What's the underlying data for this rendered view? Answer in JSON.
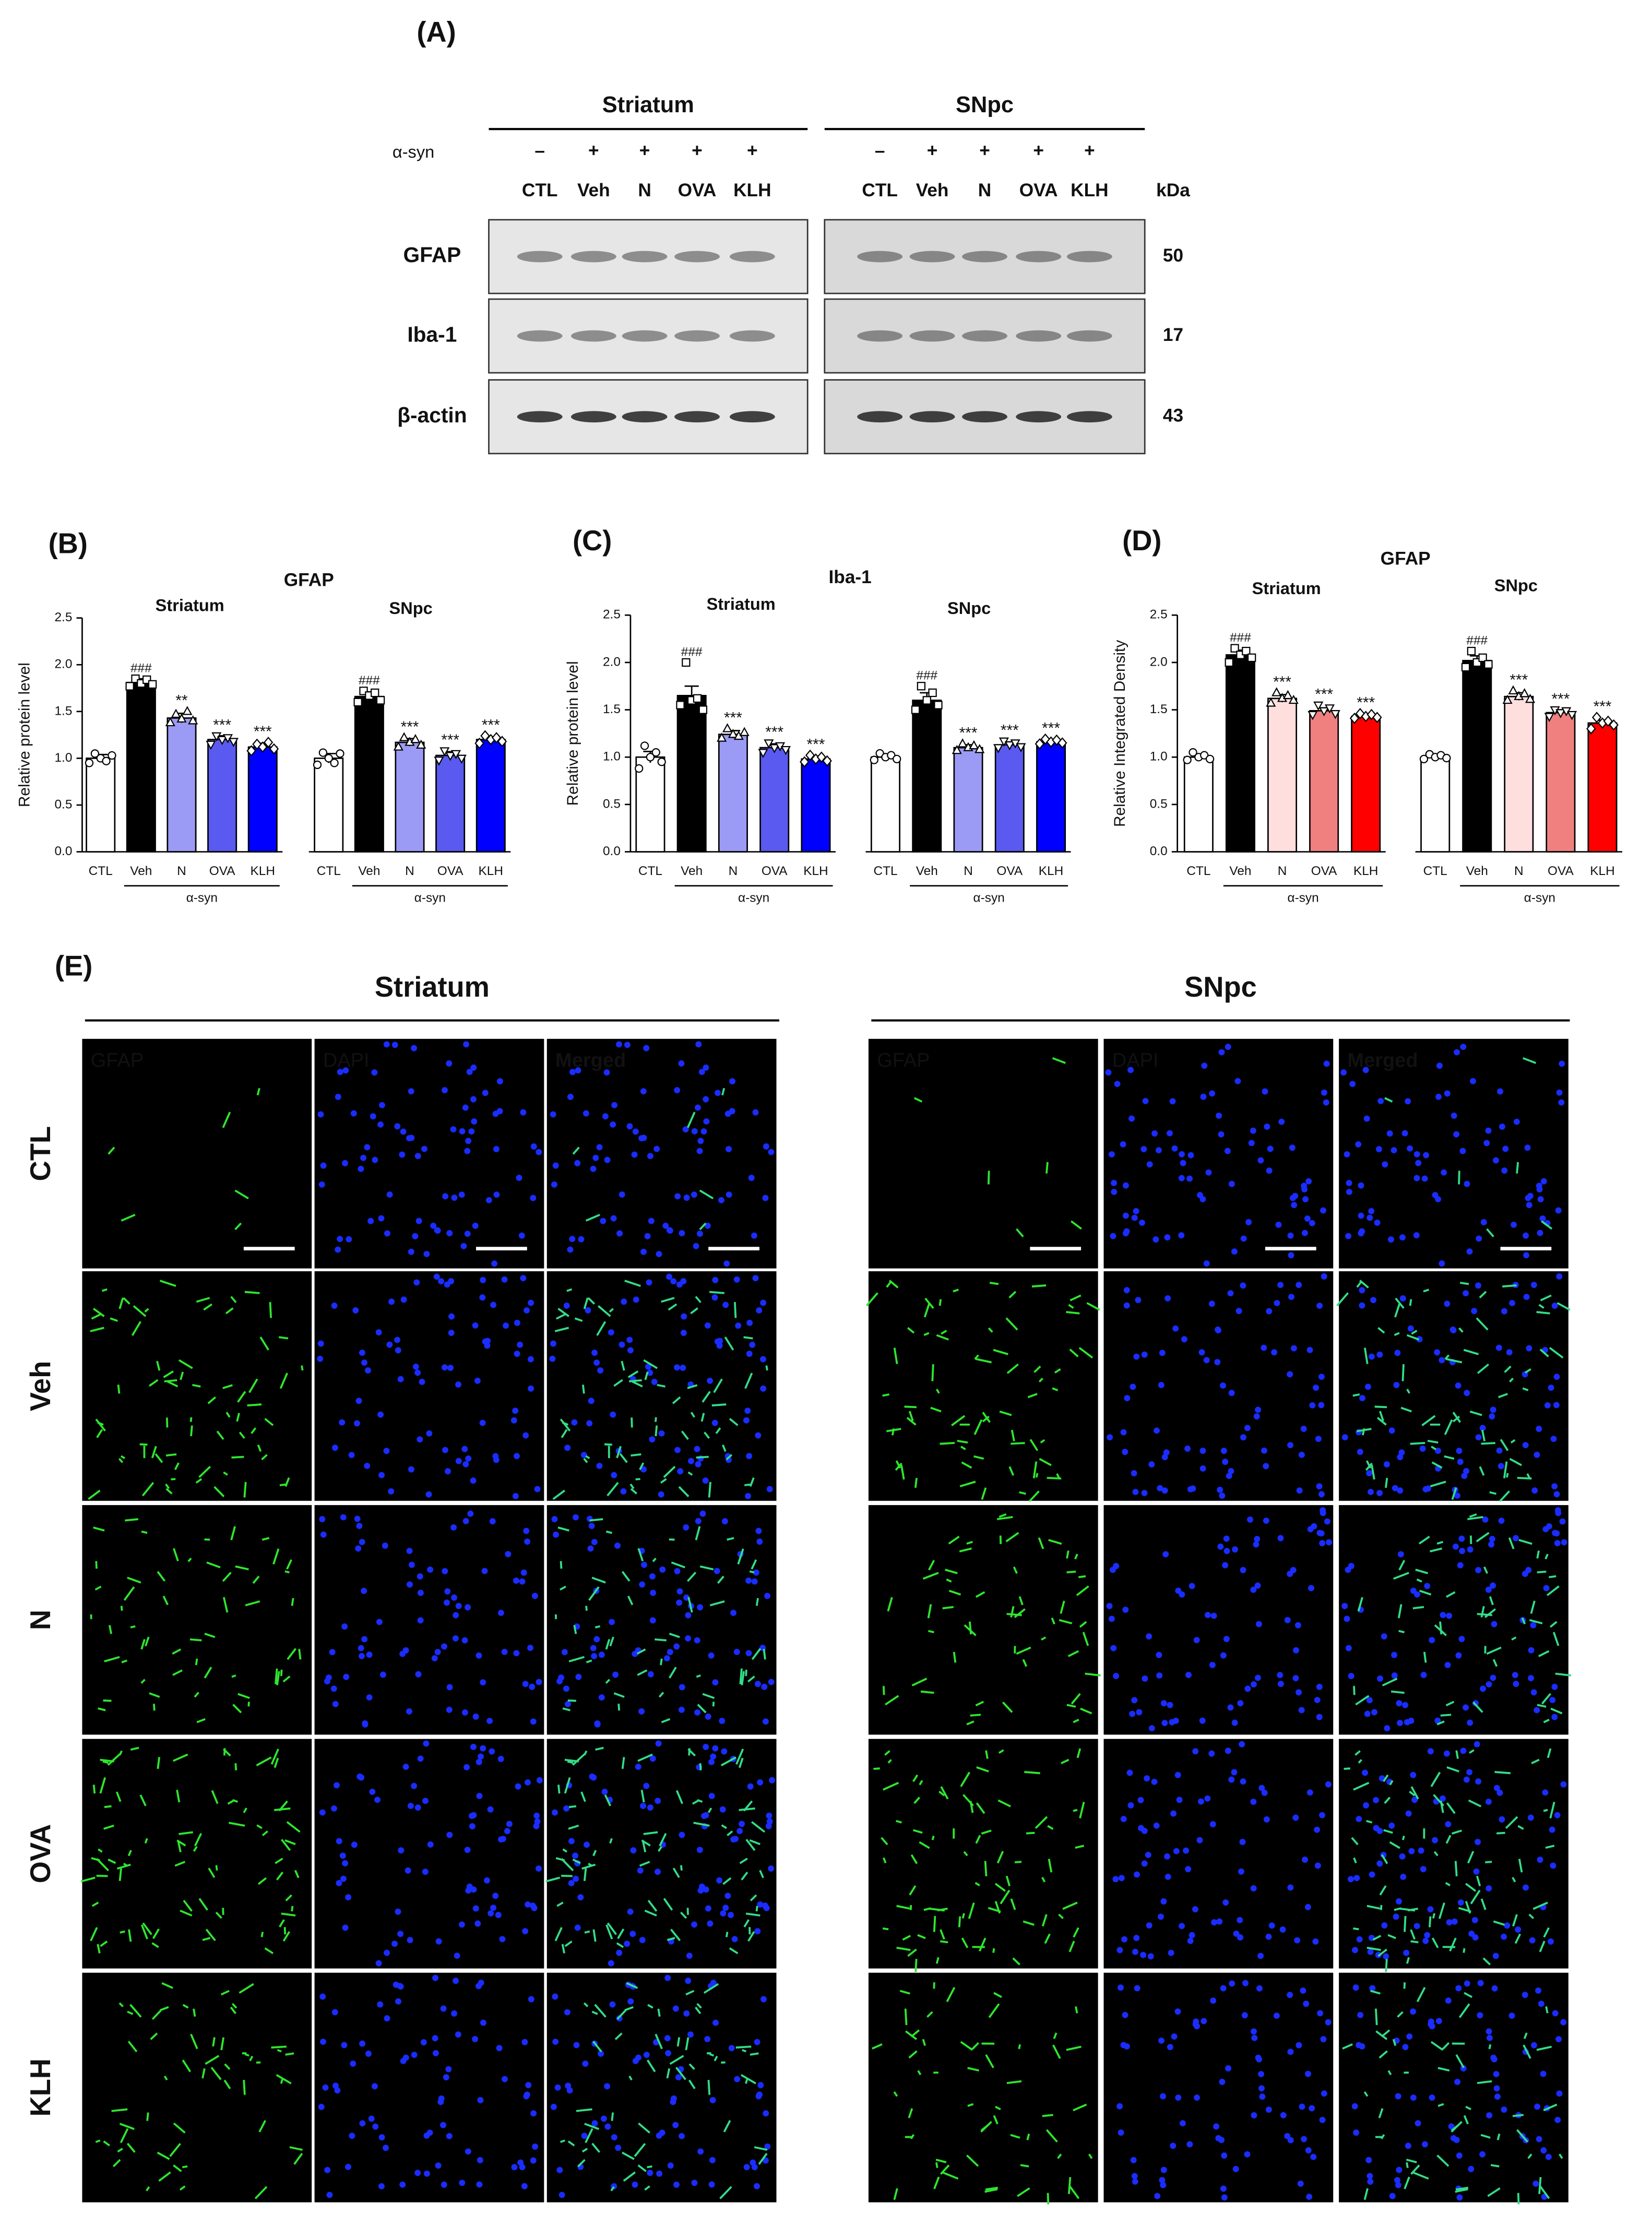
{
  "blot": {
    "label": "(A)",
    "treatment_label": "α-syn",
    "kda_label": "kDa",
    "regions": [
      {
        "name": "Striatum",
        "signs": [
          "–",
          "+",
          "+",
          "+",
          "+"
        ],
        "lanes": [
          "CTL",
          "Veh",
          "N",
          "OVA",
          "KLH"
        ]
      },
      {
        "name": "SNpc",
        "signs": [
          "–",
          "+",
          "+",
          "+",
          "+"
        ],
        "lanes": [
          "CTL",
          "Veh",
          "N",
          "OVA",
          "KLH"
        ]
      }
    ],
    "proteins": [
      {
        "name": "GFAP",
        "kda": 50
      },
      {
        "name": "Iba-1",
        "kda": 17
      },
      {
        "name": "β-actin",
        "kda": 43
      }
    ]
  },
  "chart_data": [
    {
      "type": "bar",
      "label": "(B)",
      "title": "GFAP",
      "ylabel": "Relative protein level",
      "ylim": [
        0,
        2.5
      ],
      "yticks": [
        {
          "value": 0,
          "label": "0.0"
        },
        0.5,
        {
          "value": 1,
          "label": "1.0"
        },
        1.5,
        {
          "value": 2,
          "label": "2.0"
        },
        2.5
      ],
      "groups": [
        {
          "name": "Striatum",
          "categories": [
            "CTL",
            "Veh",
            "N",
            "OVA",
            "KLH"
          ],
          "group_label": "α-syn",
          "colors": [
            "#ffffff",
            "#000000",
            "#9b9bf5",
            "#5a5af0",
            "#0000ff"
          ],
          "values": [
            1.0,
            1.81,
            1.43,
            1.2,
            1.12
          ],
          "errors": [
            0.04,
            0.04,
            0.05,
            0.04,
            0.04
          ],
          "annotations": [
            null,
            "###",
            "**",
            "***",
            "***"
          ],
          "points": [
            [
              0.95,
              1.05,
              1.0,
              0.97,
              1.03
            ],
            [
              1.77,
              1.85,
              1.8,
              1.84,
              1.79
            ],
            [
              1.38,
              1.47,
              1.42,
              1.5,
              1.4
            ],
            [
              1.15,
              1.24,
              1.2,
              1.22,
              1.18
            ],
            [
              1.08,
              1.15,
              1.12,
              1.17,
              1.1
            ]
          ]
        },
        {
          "name": "SNpc",
          "categories": [
            "CTL",
            "Veh",
            "N",
            "OVA",
            "KLH"
          ],
          "group_label": "α-syn",
          "colors": [
            "#ffffff",
            "#000000",
            "#9b9bf5",
            "#5a5af0",
            "#0000ff"
          ],
          "values": [
            1.0,
            1.66,
            1.17,
            1.03,
            1.2
          ],
          "errors": [
            0.05,
            0.05,
            0.04,
            0.04,
            0.03
          ],
          "annotations": [
            null,
            "###",
            "***",
            "***",
            "***"
          ],
          "points": [
            [
              0.93,
              1.06,
              1.0,
              0.95,
              1.05
            ],
            [
              1.6,
              1.72,
              1.67,
              1.7,
              1.62
            ],
            [
              1.12,
              1.22,
              1.17,
              1.2,
              1.14
            ],
            [
              0.98,
              1.08,
              1.03,
              1.05,
              1.0
            ],
            [
              1.16,
              1.24,
              1.2,
              1.22,
              1.18
            ]
          ]
        }
      ]
    },
    {
      "type": "bar",
      "label": "(C)",
      "title": "Iba-1",
      "ylabel": "Relative protein level",
      "ylim": [
        0,
        2.5
      ],
      "yticks": [
        {
          "value": 0,
          "label": "0.0"
        },
        0.5,
        {
          "value": 1,
          "label": "1.0"
        },
        1.5,
        {
          "value": 2,
          "label": "2.0"
        },
        2.5
      ],
      "groups": [
        {
          "name": "Striatum",
          "categories": [
            "CTL",
            "Veh",
            "N",
            "OVA",
            "KLH"
          ],
          "group_label": "α-syn",
          "colors": [
            "#ffffff",
            "#000000",
            "#9b9bf5",
            "#5a5af0",
            "#0000ff"
          ],
          "values": [
            1.0,
            1.65,
            1.24,
            1.1,
            0.98
          ],
          "errors": [
            0.06,
            0.1,
            0.04,
            0.04,
            0.03
          ],
          "annotations": [
            null,
            "###",
            "***",
            "***",
            "***"
          ],
          "points": [
            [
              0.88,
              1.12,
              1.0,
              1.05,
              0.95
            ],
            [
              1.55,
              2.0,
              1.6,
              1.62,
              1.5
            ],
            [
              1.2,
              1.3,
              1.24,
              1.22,
              1.26
            ],
            [
              1.05,
              1.15,
              1.1,
              1.12,
              1.08
            ],
            [
              0.95,
              1.02,
              0.98,
              1.0,
              0.96
            ]
          ]
        },
        {
          "name": "SNpc",
          "categories": [
            "CTL",
            "Veh",
            "N",
            "OVA",
            "KLH"
          ],
          "group_label": "α-syn",
          "colors": [
            "#ffffff",
            "#000000",
            "#9b9bf5",
            "#5a5af0",
            "#0000ff"
          ],
          "values": [
            1.0,
            1.6,
            1.1,
            1.13,
            1.16
          ],
          "errors": [
            0.03,
            0.08,
            0.03,
            0.03,
            0.02
          ],
          "annotations": [
            null,
            "###",
            "***",
            "***",
            "***"
          ],
          "points": [
            [
              0.97,
              1.04,
              1.0,
              1.02,
              0.98
            ],
            [
              1.5,
              1.75,
              1.6,
              1.68,
              1.55
            ],
            [
              1.07,
              1.14,
              1.1,
              1.12,
              1.08
            ],
            [
              1.1,
              1.17,
              1.13,
              1.15,
              1.11
            ],
            [
              1.14,
              1.19,
              1.16,
              1.18,
              1.15
            ]
          ]
        }
      ]
    },
    {
      "type": "bar",
      "label": "(D)",
      "title": "GFAP",
      "ylabel": "Relative Integrated Density",
      "ylim": [
        0,
        2.5
      ],
      "yticks": [
        {
          "value": 0,
          "label": "0.0"
        },
        0.5,
        {
          "value": 1,
          "label": "1.0"
        },
        1.5,
        {
          "value": 2,
          "label": "2.0"
        },
        2.5
      ],
      "groups": [
        {
          "name": "Striatum",
          "categories": [
            "CTL",
            "Veh",
            "N",
            "OVA",
            "KLH"
          ],
          "group_label": "α-syn",
          "colors": [
            "#ffffff",
            "#000000",
            "#ffdede",
            "#f08080",
            "#ff0000"
          ],
          "values": [
            1.0,
            2.08,
            1.62,
            1.49,
            1.43
          ],
          "errors": [
            0.03,
            0.05,
            0.04,
            0.03,
            0.02
          ],
          "annotations": [
            null,
            "###",
            "***",
            "***",
            "***"
          ],
          "points": [
            [
              0.97,
              1.05,
              1.0,
              1.02,
              0.98
            ],
            [
              2.0,
              2.15,
              2.08,
              2.12,
              2.05
            ],
            [
              1.57,
              1.68,
              1.62,
              1.65,
              1.6
            ],
            [
              1.45,
              1.55,
              1.49,
              1.52,
              1.46
            ],
            [
              1.41,
              1.46,
              1.43,
              1.45,
              1.42
            ]
          ]
        },
        {
          "name": "SNpc",
          "categories": [
            "CTL",
            "Veh",
            "N",
            "OVA",
            "KLH"
          ],
          "group_label": "α-syn",
          "colors": [
            "#ffffff",
            "#000000",
            "#ffdede",
            "#f08080",
            "#ff0000"
          ],
          "values": [
            1.0,
            2.02,
            1.64,
            1.47,
            1.36
          ],
          "errors": [
            0.02,
            0.05,
            0.04,
            0.03,
            0.03
          ],
          "annotations": [
            null,
            "###",
            "***",
            "***",
            "***"
          ],
          "points": [
            [
              0.98,
              1.03,
              1.0,
              1.02,
              0.99
            ],
            [
              1.95,
              2.12,
              2.0,
              2.05,
              1.98
            ],
            [
              1.6,
              1.7,
              1.64,
              1.67,
              1.61
            ],
            [
              1.43,
              1.5,
              1.47,
              1.49,
              1.45
            ],
            [
              1.3,
              1.42,
              1.36,
              1.38,
              1.34
            ]
          ]
        }
      ]
    }
  ],
  "microscopy": {
    "label": "(E)",
    "regions": [
      {
        "name": "Striatum",
        "channels": [
          "GFAP",
          "DAPI",
          "Merged"
        ]
      },
      {
        "name": "SNpc",
        "channels": [
          "GFAP",
          "DAPI",
          "Merged"
        ]
      }
    ],
    "rows": [
      "CTL",
      "Veh",
      "N",
      "OVA",
      "KLH"
    ]
  }
}
